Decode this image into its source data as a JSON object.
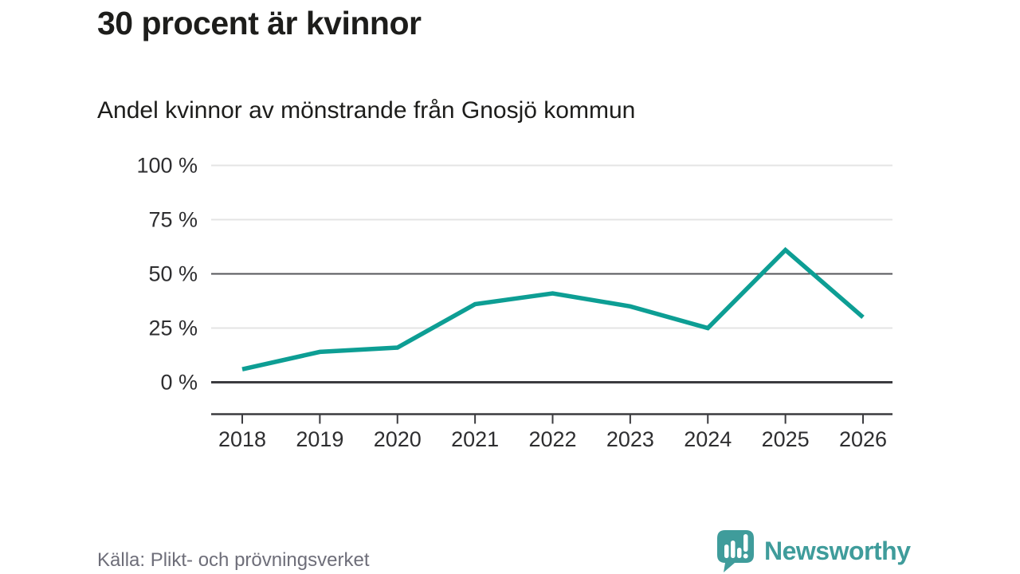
{
  "header": {
    "title": "30 procent är kvinnor",
    "subtitle": "Andel kvinnor av mönstrande från Gnosjö kommun"
  },
  "chart_data": {
    "type": "line",
    "title": "30 procent är kvinnor",
    "subtitle": "Andel kvinnor av mönstrande från Gnosjö kommun",
    "x": [
      2018,
      2019,
      2020,
      2021,
      2022,
      2023,
      2024,
      2025,
      2026
    ],
    "series": [
      {
        "name": "Andel kvinnor av mönstrande",
        "values": [
          6,
          14,
          16,
          36,
          41,
          35,
          25,
          61,
          30
        ]
      }
    ],
    "unit": "%",
    "ylim": [
      0,
      100
    ],
    "y_ticks": [
      {
        "value": 0,
        "label": "0 %"
      },
      {
        "value": 25,
        "label": "25 %"
      },
      {
        "value": 50,
        "label": "50 %"
      },
      {
        "value": 75,
        "label": "75 %"
      },
      {
        "value": 100,
        "label": "100 %"
      }
    ],
    "grid": "horizontal",
    "legend": "none",
    "emphasized_gridlines": [
      50,
      0
    ],
    "line_color": "#0d9e94"
  },
  "footer": {
    "source": "Källa: Plikt- och prövningsverket",
    "brand": {
      "icon": "newsworthy-logo-icon",
      "wordmark": "Newsworthy"
    }
  },
  "colors": {
    "accent_teal": "#0d9e94",
    "logo_teal": "#3f9c9b",
    "text_dark": "#1d1d1b",
    "axis_text": "#2e2e30",
    "grid_light": "#e4e4e4",
    "grid_medium": "#55565a",
    "grid_dark": "#3b3b3f",
    "source_gray": "#6e6e79"
  }
}
